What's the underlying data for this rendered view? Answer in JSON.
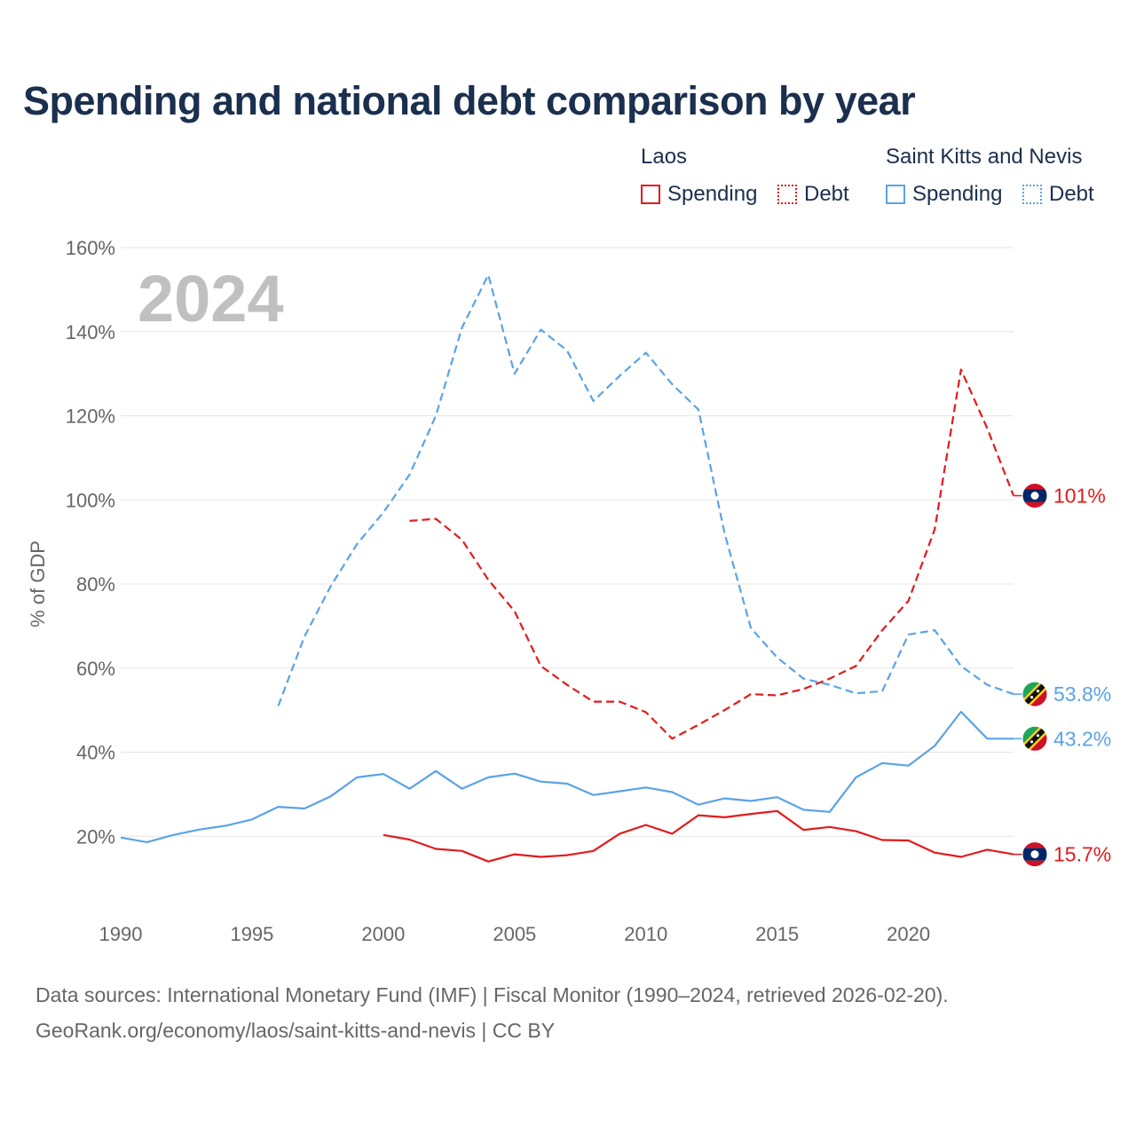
{
  "title": "Spending and national debt comparison by year",
  "legend": {
    "groups": [
      {
        "name": "Laos",
        "spending_label": "Spending",
        "debt_label": "Debt",
        "color": "#e31a1c"
      },
      {
        "name": "Saint Kitts and Nevis",
        "spending_label": "Spending",
        "debt_label": "Debt",
        "color": "#5aa3e6"
      }
    ]
  },
  "year_watermark": "2024",
  "footer": {
    "sources": "Data sources: International Monetary Fund (IMF) | Fiscal Monitor (1990–2024, retrieved 2026-02-20).",
    "attribution": "GeoRank.org/economy/laos/saint-kitts-and-nevis | CC BY"
  },
  "chart_data": {
    "type": "line",
    "title": "Spending and national debt comparison by year",
    "xlabel": "",
    "ylabel": "% of GDP",
    "xlim": [
      1990,
      2024
    ],
    "ylim": [
      0,
      160
    ],
    "xticks": [
      1990,
      1995,
      2000,
      2005,
      2010,
      2015,
      2020
    ],
    "xtick_labels": [
      "1990",
      "1995",
      "2000",
      "2005",
      "2010",
      "2015",
      "2020"
    ],
    "yticks": [
      20,
      40,
      60,
      80,
      100,
      120,
      140,
      160
    ],
    "ytick_labels": [
      "20%",
      "40%",
      "60%",
      "80%",
      "100%",
      "120%",
      "140%",
      "160%"
    ],
    "grid": true,
    "legend_position": "top-right",
    "series": [
      {
        "name": "Saint Kitts and Nevis Debt",
        "country": "Saint Kitts and Nevis",
        "metric": "Debt",
        "color": "#5aa3e6",
        "dashed": true,
        "end_label": "53.8%",
        "x": [
          1996,
          1997,
          1998,
          1999,
          2000,
          2001,
          2002,
          2003,
          2004,
          2005,
          2006,
          2007,
          2008,
          2009,
          2010,
          2011,
          2012,
          2013,
          2014,
          2015,
          2016,
          2017,
          2018,
          2019,
          2020,
          2021,
          2022,
          2023,
          2024
        ],
        "y": [
          51,
          67.5,
          79.5,
          89.5,
          97,
          106,
          120,
          141,
          153.5,
          130,
          140.5,
          135.5,
          123.5,
          129.5,
          135,
          127.5,
          121.5,
          92,
          69.5,
          62.5,
          57.5,
          56,
          54,
          54.5,
          68,
          69,
          60.5,
          56,
          53.8
        ]
      },
      {
        "name": "Laos Debt",
        "country": "Laos",
        "metric": "Debt",
        "color": "#e31a1c",
        "dashed": true,
        "end_label": "101%",
        "x": [
          2001,
          2002,
          2003,
          2004,
          2005,
          2006,
          2007,
          2008,
          2009,
          2010,
          2011,
          2012,
          2013,
          2014,
          2015,
          2016,
          2017,
          2018,
          2019,
          2020,
          2021,
          2022,
          2023,
          2024
        ],
        "y": [
          95,
          95.5,
          90.5,
          81,
          73.5,
          60.5,
          56,
          52,
          52,
          49.5,
          43.2,
          46.5,
          50,
          53.8,
          53.5,
          55,
          57.5,
          60.5,
          69,
          76,
          93,
          131,
          117,
          101
        ]
      },
      {
        "name": "Saint Kitts and Nevis Spending",
        "country": "Saint Kitts and Nevis",
        "metric": "Spending",
        "color": "#5aa3e6",
        "dashed": false,
        "end_label": "43.2%",
        "x": [
          1990,
          1991,
          1992,
          1993,
          1994,
          1995,
          1996,
          1997,
          1998,
          1999,
          2000,
          2001,
          2002,
          2003,
          2004,
          2005,
          2006,
          2007,
          2008,
          2009,
          2010,
          2011,
          2012,
          2013,
          2014,
          2015,
          2016,
          2017,
          2018,
          2019,
          2020,
          2021,
          2022,
          2023,
          2024
        ],
        "y": [
          19.7,
          18.6,
          20.3,
          21.6,
          22.5,
          24,
          27,
          26.6,
          29.5,
          34,
          34.8,
          31.3,
          35.5,
          31.3,
          34,
          34.9,
          33,
          32.5,
          29.8,
          30.7,
          31.6,
          30.5,
          27.5,
          29,
          28.4,
          29.3,
          26.3,
          25.8,
          34,
          37.4,
          36.8,
          41.5,
          49.6,
          43.2,
          43.2
        ]
      },
      {
        "name": "Laos Spending",
        "country": "Laos",
        "metric": "Spending",
        "color": "#e31a1c",
        "dashed": false,
        "end_label": "15.7%",
        "x": [
          2000,
          2001,
          2002,
          2003,
          2004,
          2005,
          2006,
          2007,
          2008,
          2009,
          2010,
          2011,
          2012,
          2013,
          2014,
          2015,
          2016,
          2017,
          2018,
          2019,
          2020,
          2021,
          2022,
          2023,
          2024
        ],
        "y": [
          20.3,
          19.2,
          17,
          16.5,
          14,
          15.7,
          15.1,
          15.5,
          16.5,
          20.6,
          22.7,
          20.6,
          25,
          24.5,
          25.3,
          26,
          21.5,
          22.2,
          21.2,
          19.1,
          19,
          16.1,
          15.1,
          16.8,
          15.7
        ]
      }
    ]
  }
}
